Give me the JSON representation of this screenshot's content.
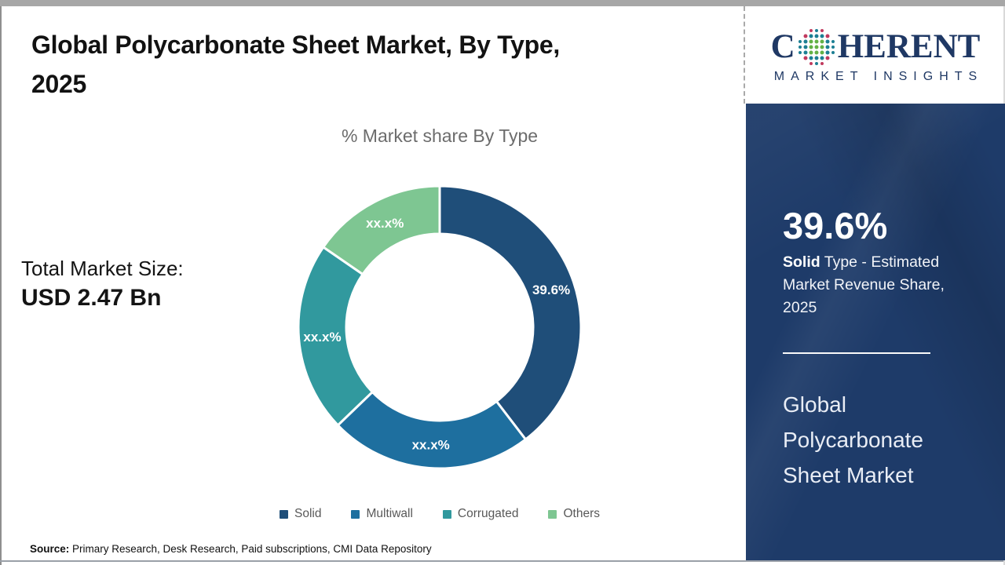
{
  "header": {
    "title_line1": "Global Polycarbonate Sheet Market, By Type,",
    "title_line2": "2025"
  },
  "brand": {
    "letter_c": "C",
    "letters_rest": "HERENT",
    "tagline": "MARKET INSIGHTS",
    "color": "#1F3864",
    "globe_icon": "coherent-globe-icon",
    "globe_colors": {
      "teal": "#1c7f93",
      "green": "#62b146",
      "red": "#c13a5e"
    }
  },
  "left_panel": {
    "total_label": "Total Market Size:",
    "total_value": "USD 2.47 Bn"
  },
  "chart_data": {
    "type": "pie",
    "subtype": "donut",
    "title": "% Market share By Type",
    "legend_position": "bottom",
    "inner_radius_ratio": 0.66,
    "start_angle_deg": 0,
    "direction": "clockwise",
    "segments": [
      {
        "name": "Solid",
        "label": "39.6%",
        "value": 39.6,
        "color": "#1F4E79"
      },
      {
        "name": "Multiwall",
        "label": "xx.x%",
        "value": 23.2,
        "color": "#1E6F9F"
      },
      {
        "name": "Corrugated",
        "label": "xx.x%",
        "value": 21.8,
        "color": "#31999E"
      },
      {
        "name": "Others",
        "label": "xx.x%",
        "value": 15.4,
        "color": "#7EC692"
      }
    ]
  },
  "sidebar": {
    "headline": "39.6%",
    "description_bold": "Solid",
    "description_rest": " Type - Estimated Market Revenue Share, 2025",
    "market_name": "Global Polycarbonate Sheet Market",
    "bg_color": "#1E3B69"
  },
  "footer": {
    "source_label": "Source:",
    "source_text": " Primary Research, Desk Research, Paid subscriptions, CMI Data Repository"
  }
}
